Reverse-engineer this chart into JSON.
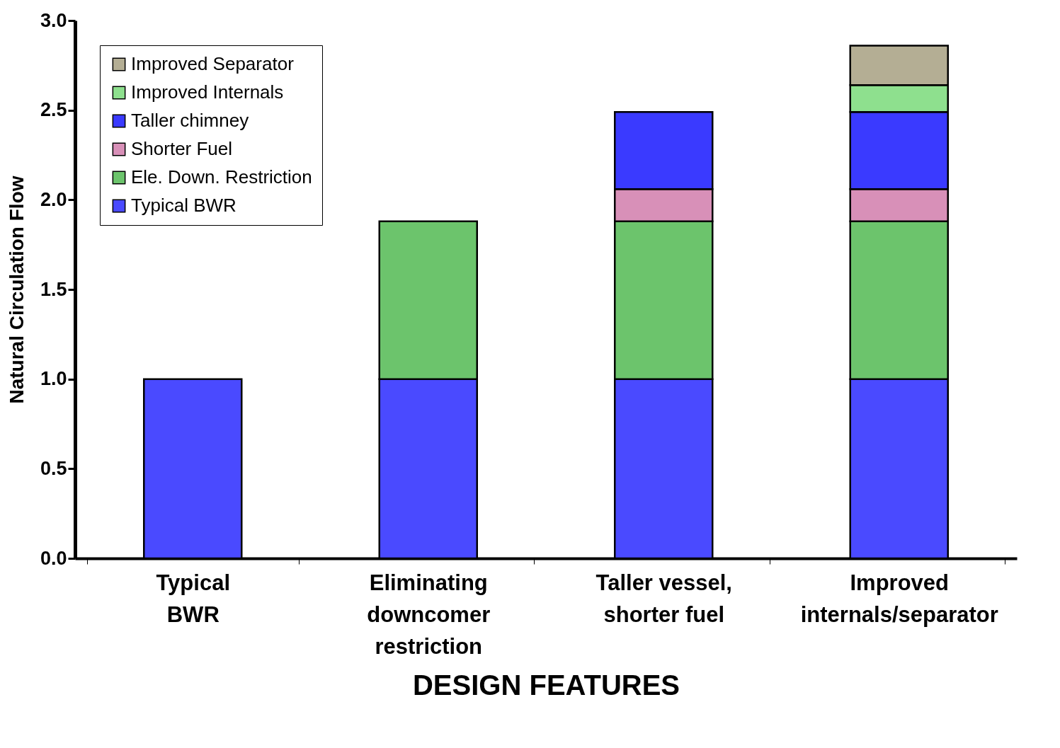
{
  "chart_data": {
    "type": "bar",
    "stacked": true,
    "xlabel": "DESIGN FEATURES",
    "ylabel": "Natural Circulation Flow",
    "categories": [
      "Typical\nBWR",
      "Eliminating\ndowncomer\nrestriction",
      "Taller vessel,\nshorter fuel",
      "Improved\ninternals/separator"
    ],
    "series": [
      {
        "name": "Typical BWR",
        "color": "#4a4aff",
        "values": [
          1.0,
          1.0,
          1.0,
          1.0
        ]
      },
      {
        "name": "Ele. Down. Restriction",
        "color": "#6cc46c",
        "values": [
          null,
          0.88,
          0.88,
          0.88
        ]
      },
      {
        "name": "Shorter Fuel",
        "color": "#d890b8",
        "values": [
          null,
          null,
          0.18,
          0.18
        ]
      },
      {
        "name": "Taller chimney",
        "color": "#3a3aff",
        "values": [
          null,
          null,
          0.43,
          0.43
        ]
      },
      {
        "name": "Improved Internals",
        "color": "#8ee08e",
        "values": [
          null,
          null,
          null,
          0.15
        ]
      },
      {
        "name": "Improved Separator",
        "color": "#b4ae94",
        "values": [
          null,
          null,
          null,
          0.22
        ]
      }
    ],
    "ylim": [
      0,
      3.0
    ],
    "yticks": [
      {
        "value": 0,
        "label": "0.0"
      },
      {
        "value": 0.5,
        "label": "0.5"
      },
      {
        "value": 1.0,
        "label": "1.0"
      },
      {
        "value": 1.5,
        "label": "1.5"
      },
      {
        "value": 2.0,
        "label": "2.0"
      },
      {
        "value": 2.5,
        "label": "2.5"
      },
      {
        "value": 3.0,
        "label": "3.0"
      }
    ],
    "grid": false,
    "legend": "top left"
  }
}
